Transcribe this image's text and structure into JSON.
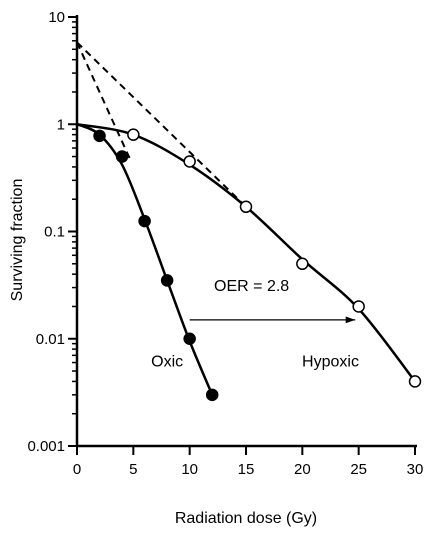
{
  "chart_data": {
    "type": "scatter",
    "title": "",
    "xlabel": "Radiation dose (Gy)",
    "ylabel": "Surviving fraction",
    "x_range": [
      0,
      30
    ],
    "y_range": [
      0.001,
      10
    ],
    "y_scale": "log",
    "grid": false,
    "x_ticks": [
      0,
      5,
      10,
      15,
      20,
      25,
      30
    ],
    "x_tick_labels": [
      "0",
      "5",
      "10",
      "15",
      "20",
      "25",
      "30"
    ],
    "y_ticks": [
      0.001,
      0.01,
      0.1,
      1,
      10
    ],
    "y_tick_labels": [
      "0.001",
      "0.01",
      "0.1",
      "1",
      "10"
    ],
    "series": [
      {
        "name": "Oxic",
        "marker": "filled-circle",
        "x": [
          2,
          4,
          6,
          8,
          10,
          12
        ],
        "y": [
          0.78,
          0.5,
          0.125,
          0.035,
          0.01,
          0.003
        ],
        "curve_x": [
          0,
          2,
          4,
          6,
          8,
          10,
          12
        ],
        "curve_y": [
          1.0,
          0.8,
          0.42,
          0.13,
          0.035,
          0.0095,
          0.003
        ]
      },
      {
        "name": "Hypoxic",
        "marker": "open-circle",
        "x": [
          5,
          10,
          15,
          20,
          25,
          30
        ],
        "y": [
          0.8,
          0.45,
          0.17,
          0.05,
          0.02,
          0.004
        ],
        "curve_x": [
          0,
          5,
          10,
          15,
          20,
          25,
          30
        ],
        "curve_y": [
          1.0,
          0.8,
          0.42,
          0.17,
          0.055,
          0.019,
          0.004
        ]
      }
    ],
    "extrapolations": [
      {
        "x": [
          0,
          4.8
        ],
        "y": [
          5.8,
          0.45
        ]
      },
      {
        "x": [
          0,
          15
        ],
        "y": [
          5.8,
          0.17
        ]
      }
    ],
    "annotations": [
      {
        "text": "Oxic",
        "x": 8,
        "y": 0.0055
      },
      {
        "text": "Hypoxic",
        "x": 22.5,
        "y": 0.0055
      },
      {
        "text": "OER = 2.8",
        "x": 15.5,
        "y": 0.028
      }
    ],
    "arrow": {
      "from": [
        10,
        0.015
      ],
      "to": [
        24.7,
        0.015
      ]
    }
  }
}
